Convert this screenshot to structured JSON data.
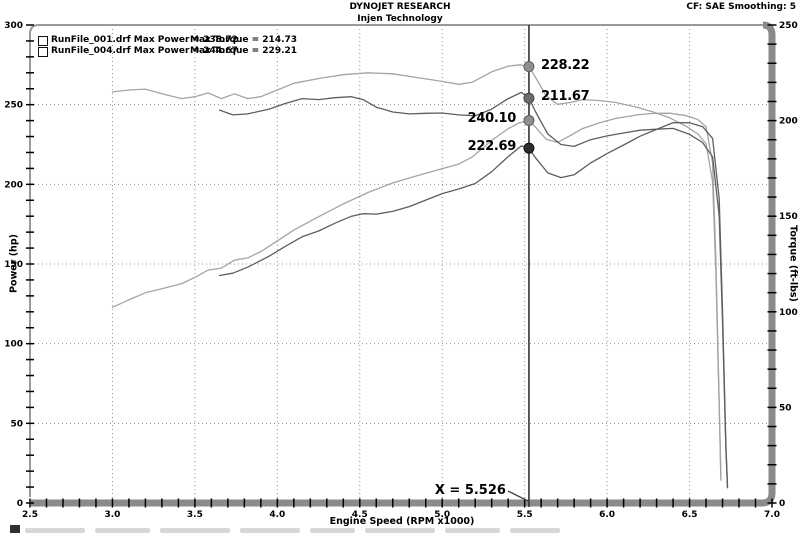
{
  "header": {
    "title": "DYNOJET RESEARCH",
    "subtitle": "Injen Technology",
    "correction": "CF: SAE  Smoothing: 5"
  },
  "legend": {
    "rows": [
      {
        "file": "RunFile_001.drf Max Power = 238.72",
        "torque": "Max Torque = 214.73",
        "swatch_color": "#6a6a6a"
      },
      {
        "file": "RunFile_004.drf Max Power = 244.67",
        "torque": "Max Torque = 229.21",
        "swatch_color": "#ababab"
      }
    ]
  },
  "cursor": {
    "rpm": 5.526,
    "label": "X = 5.526",
    "readouts": [
      {
        "value": "228.22",
        "axis": "torque",
        "run": "RunFile_004.drf",
        "side": "right",
        "dot_color": "#8f8f8f",
        "dot_edge": "#5f5f5f"
      },
      {
        "value": "211.67",
        "axis": "torque",
        "run": "RunFile_001.drf",
        "side": "right",
        "dot_color": "#6d6d6d",
        "dot_edge": "#444444"
      },
      {
        "value": "240.10",
        "axis": "power",
        "run": "RunFile_004.drf",
        "side": "left",
        "dot_color": "#8f8f8f",
        "dot_edge": "#5f5f5f"
      },
      {
        "value": "222.69",
        "axis": "power",
        "run": "RunFile_001.drf",
        "side": "left",
        "dot_color": "#2e2e2e",
        "dot_edge": "#111111"
      }
    ]
  },
  "chart_data": {
    "type": "line",
    "title": "DYNOJET RESEARCH",
    "subtitle": "Injen Technology",
    "xlabel": "Engine Speed (RPM x1000)",
    "ylabel_left": "Power (hp)",
    "ylabel_right": "Torque (ft-lbs)",
    "xlim": [
      2.5,
      7.0
    ],
    "ylim_power": [
      0,
      300
    ],
    "ylim_torque": [
      0,
      250
    ],
    "grid": "dotted; vertical every 0.5 RPM, horizontal every 50 hp",
    "x_tick_labels": [
      "2.5",
      "3.0",
      "3.5",
      "4.0",
      "4.5",
      "5.0",
      "5.5",
      "6.0",
      "6.5",
      "7.0"
    ],
    "power_tick_labels": [
      "0",
      "50",
      "100",
      "150",
      "200",
      "250",
      "300"
    ],
    "torque_tick_labels": [
      "0",
      "50",
      "100",
      "150",
      "200",
      "250"
    ],
    "x_minor_step": 0.1,
    "y_minor_step": 10,
    "series": [
      {
        "name": "RunFile_004.drf Torque",
        "axis": "torque",
        "color": "#a4a4a4",
        "points": [
          [
            3.0,
            215
          ],
          [
            3.1,
            216
          ],
          [
            3.2,
            216.5
          ],
          [
            3.3,
            214
          ],
          [
            3.42,
            211.5
          ],
          [
            3.5,
            212.5
          ],
          [
            3.58,
            214.5
          ],
          [
            3.66,
            211.5
          ],
          [
            3.74,
            214
          ],
          [
            3.82,
            211.5
          ],
          [
            3.9,
            212.5
          ],
          [
            4.0,
            216
          ],
          [
            4.1,
            219.5
          ],
          [
            4.25,
            222
          ],
          [
            4.4,
            224
          ],
          [
            4.55,
            225
          ],
          [
            4.7,
            224.5
          ],
          [
            4.85,
            222.5
          ],
          [
            5.0,
            220.5
          ],
          [
            5.1,
            219
          ],
          [
            5.18,
            220
          ],
          [
            5.3,
            225.5
          ],
          [
            5.4,
            228.5
          ],
          [
            5.47,
            229.21
          ],
          [
            5.526,
            228.22
          ],
          [
            5.57,
            222
          ],
          [
            5.63,
            213
          ],
          [
            5.7,
            208.5
          ],
          [
            5.78,
            209.5
          ],
          [
            5.85,
            211
          ],
          [
            5.95,
            210.5
          ],
          [
            6.05,
            209.5
          ],
          [
            6.18,
            207
          ],
          [
            6.28,
            204.5
          ],
          [
            6.38,
            201.4
          ],
          [
            6.48,
            197
          ],
          [
            6.55,
            193
          ],
          [
            6.6,
            188
          ],
          [
            6.64,
            168
          ],
          [
            6.66,
            120
          ],
          [
            6.68,
            50
          ],
          [
            6.69,
            12
          ]
        ]
      },
      {
        "name": "RunFile_004.drf Power",
        "axis": "power",
        "color": "#a4a4a4",
        "points": [
          [
            3.0,
            122.8
          ],
          [
            3.1,
            127.5
          ],
          [
            3.2,
            131.9
          ],
          [
            3.3,
            134.5
          ],
          [
            3.42,
            137.7
          ],
          [
            3.5,
            141.6
          ],
          [
            3.58,
            146.2
          ],
          [
            3.66,
            147.4
          ],
          [
            3.74,
            152.4
          ],
          [
            3.82,
            153.8
          ],
          [
            3.9,
            157.8
          ],
          [
            4.0,
            164.5
          ],
          [
            4.1,
            171.3
          ],
          [
            4.25,
            179.7
          ],
          [
            4.4,
            187.7
          ],
          [
            4.55,
            194.9
          ],
          [
            4.7,
            200.9
          ],
          [
            4.85,
            205.5
          ],
          [
            5.0,
            209.9
          ],
          [
            5.1,
            212.7
          ],
          [
            5.18,
            217.0
          ],
          [
            5.3,
            227.6
          ],
          [
            5.4,
            235.0
          ],
          [
            5.47,
            238.7
          ],
          [
            5.526,
            240.1
          ],
          [
            5.57,
            235.4
          ],
          [
            5.63,
            228.3
          ],
          [
            5.7,
            226.3
          ],
          [
            5.78,
            230.8
          ],
          [
            5.85,
            235.0
          ],
          [
            5.95,
            238.5
          ],
          [
            6.05,
            241.3
          ],
          [
            6.18,
            243.6
          ],
          [
            6.28,
            244.5
          ],
          [
            6.38,
            244.67
          ],
          [
            6.48,
            243.1
          ],
          [
            6.55,
            240.7
          ],
          [
            6.6,
            236.2
          ],
          [
            6.64,
            213.4
          ],
          [
            6.66,
            152.3
          ],
          [
            6.68,
            63.6
          ],
          [
            6.69,
            15.3
          ]
        ]
      },
      {
        "name": "RunFile_001.drf Torque",
        "axis": "torque",
        "color": "#5e5e5e",
        "points": [
          [
            3.65,
            205.5
          ],
          [
            3.73,
            203
          ],
          [
            3.82,
            203.5
          ],
          [
            3.95,
            206
          ],
          [
            4.05,
            209
          ],
          [
            4.15,
            211.5
          ],
          [
            4.25,
            211
          ],
          [
            4.35,
            212
          ],
          [
            4.45,
            212.5
          ],
          [
            4.52,
            211
          ],
          [
            4.6,
            207
          ],
          [
            4.7,
            204.5
          ],
          [
            4.8,
            203.5
          ],
          [
            4.9,
            203.8
          ],
          [
            5.0,
            204
          ],
          [
            5.1,
            203
          ],
          [
            5.2,
            202.5
          ],
          [
            5.3,
            206
          ],
          [
            5.4,
            211.5
          ],
          [
            5.48,
            214.73
          ],
          [
            5.526,
            211.67
          ],
          [
            5.57,
            204
          ],
          [
            5.64,
            193
          ],
          [
            5.72,
            187.5
          ],
          [
            5.8,
            186.5
          ],
          [
            5.9,
            190
          ],
          [
            6.0,
            192
          ],
          [
            6.1,
            193.5
          ],
          [
            6.2,
            195
          ],
          [
            6.3,
            195.5
          ],
          [
            6.4,
            195.9
          ],
          [
            6.5,
            192.8
          ],
          [
            6.58,
            188.5
          ],
          [
            6.64,
            181
          ],
          [
            6.68,
            150
          ],
          [
            6.7,
            95
          ],
          [
            6.72,
            30
          ],
          [
            6.73,
            8
          ]
        ]
      },
      {
        "name": "RunFile_001.drf Power",
        "axis": "power",
        "color": "#5e5e5e",
        "points": [
          [
            3.65,
            142.8
          ],
          [
            3.73,
            144.2
          ],
          [
            3.82,
            148.0
          ],
          [
            3.95,
            154.9
          ],
          [
            4.05,
            161.2
          ],
          [
            4.15,
            167.1
          ],
          [
            4.25,
            170.7
          ],
          [
            4.35,
            175.6
          ],
          [
            4.45,
            180.0
          ],
          [
            4.52,
            181.6
          ],
          [
            4.6,
            181.3
          ],
          [
            4.7,
            183.0
          ],
          [
            4.8,
            186.0
          ],
          [
            4.9,
            190.1
          ],
          [
            5.0,
            194.2
          ],
          [
            5.1,
            197.1
          ],
          [
            5.2,
            200.5
          ],
          [
            5.3,
            207.9
          ],
          [
            5.4,
            217.4
          ],
          [
            5.48,
            224.1
          ],
          [
            5.526,
            222.69
          ],
          [
            5.57,
            216.1
          ],
          [
            5.64,
            207.2
          ],
          [
            5.72,
            204.2
          ],
          [
            5.8,
            206.0
          ],
          [
            5.9,
            213.4
          ],
          [
            6.0,
            219.3
          ],
          [
            6.1,
            224.7
          ],
          [
            6.2,
            230.2
          ],
          [
            6.3,
            234.5
          ],
          [
            6.4,
            238.72
          ],
          [
            6.5,
            238.6
          ],
          [
            6.58,
            236.2
          ],
          [
            6.64,
            228.8
          ],
          [
            6.68,
            191.0
          ],
          [
            6.7,
            121.2
          ],
          [
            6.72,
            38.4
          ],
          [
            6.73,
            10.2
          ]
        ]
      }
    ],
    "annotations": {
      "max_power": [
        238.72,
        244.67
      ],
      "max_torque": [
        214.73,
        229.21
      ],
      "cursor_rpm": 5.526,
      "cursor_values": {
        "RunFile_004_torque": 228.22,
        "RunFile_001_torque": 211.67,
        "RunFile_004_power": 240.1,
        "RunFile_001_power": 222.69
      }
    }
  }
}
